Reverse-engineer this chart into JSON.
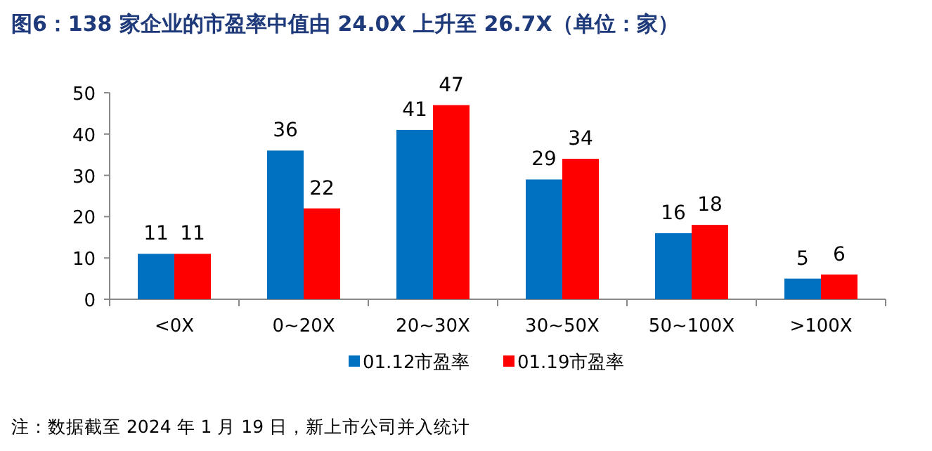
{
  "chart_data": {
    "type": "bar",
    "title": "图6：138 家企业的市盈率中值由 24.0X 上升至 26.7X（单位：家）",
    "categories": [
      "<0X",
      "0~20X",
      "20~30X",
      "30~50X",
      "50~100X",
      ">100X"
    ],
    "series": [
      {
        "name": "01.12市盈率",
        "color": "#0070c0",
        "values": [
          11,
          36,
          41,
          29,
          16,
          5
        ]
      },
      {
        "name": "01.19市盈率",
        "color": "#ff0000",
        "values": [
          11,
          22,
          47,
          34,
          18,
          6
        ]
      }
    ],
    "ylim": [
      0,
      50
    ],
    "yticks": [
      0,
      10,
      20,
      30,
      40,
      50
    ],
    "data_labels": true,
    "legend": "bottom",
    "annotations": [
      "注：数据截至 2024 年 1 月 19 日，新上市公司并入统计"
    ]
  }
}
